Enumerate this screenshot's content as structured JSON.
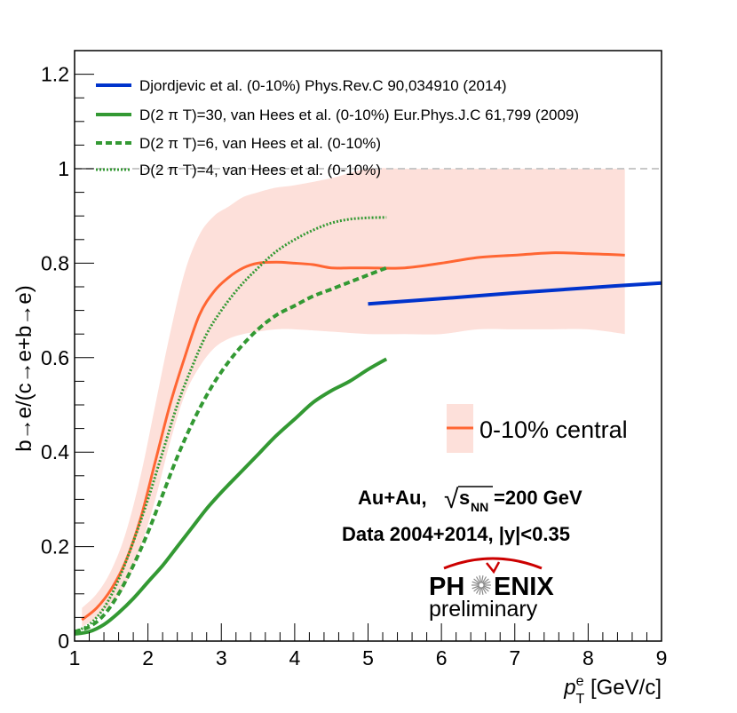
{
  "chart_data": {
    "type": "line",
    "xlabel_main": "p",
    "xlabel_sup": "e",
    "xlabel_sub": "T",
    "xlabel_unit": " [GeV/c]",
    "ylabel": "b→e/(c→e+b→e)",
    "xlim": [
      1,
      9
    ],
    "ylim": [
      0,
      1.25
    ],
    "x_ticks": [
      1,
      2,
      3,
      4,
      5,
      6,
      7,
      8,
      9
    ],
    "x_tick_labels": [
      "1",
      "2",
      "3",
      "4",
      "5",
      "6",
      "7",
      "8",
      "9"
    ],
    "y_ticks": [
      0,
      0.2,
      0.4,
      0.6,
      0.8,
      1,
      1.2
    ],
    "y_tick_labels": [
      "0",
      "0.2",
      "0.4",
      "0.6",
      "0.8",
      "1",
      "1.2"
    ],
    "reference_line": {
      "y": 1,
      "color": "#c8c8c8"
    },
    "band": {
      "name": "0-10% central uncertainty",
      "color": "#fde0da",
      "x": [
        1.1,
        1.3,
        1.5,
        1.7,
        1.9,
        2.1,
        2.3,
        2.5,
        2.7,
        2.9,
        3.1,
        3.3,
        3.5,
        3.75,
        4.0,
        4.5,
        5.0,
        5.5,
        6.0,
        6.5,
        7.0,
        7.5,
        8.0,
        8.5
      ],
      "upper": [
        0.07,
        0.1,
        0.15,
        0.23,
        0.35,
        0.5,
        0.65,
        0.78,
        0.86,
        0.9,
        0.92,
        0.94,
        0.95,
        0.96,
        0.965,
        0.98,
        1.0,
        1.0,
        1.0,
        1.0,
        1.0,
        1.0,
        1.0,
        1.0
      ],
      "lower": [
        0.03,
        0.05,
        0.08,
        0.12,
        0.2,
        0.3,
        0.42,
        0.52,
        0.58,
        0.62,
        0.64,
        0.65,
        0.655,
        0.66,
        0.66,
        0.655,
        0.65,
        0.65,
        0.65,
        0.66,
        0.66,
        0.66,
        0.66,
        0.65
      ]
    },
    "series": [
      {
        "name": "0-10% central",
        "color": "#ff6633",
        "width": 3,
        "dash": "solid",
        "x": [
          1.1,
          1.3,
          1.5,
          1.7,
          1.9,
          2.1,
          2.3,
          2.5,
          2.7,
          2.9,
          3.1,
          3.3,
          3.5,
          3.75,
          4.0,
          4.25,
          4.5,
          4.75,
          5.0,
          5.5,
          6.0,
          6.5,
          7.0,
          7.5,
          8.0,
          8.5
        ],
        "y": [
          0.045,
          0.07,
          0.11,
          0.17,
          0.26,
          0.38,
          0.5,
          0.6,
          0.69,
          0.74,
          0.77,
          0.79,
          0.8,
          0.802,
          0.8,
          0.797,
          0.79,
          0.79,
          0.79,
          0.79,
          0.8,
          0.812,
          0.817,
          0.822,
          0.82,
          0.817
        ]
      },
      {
        "name": "Djordjevic et al. (0-10%) Phys.Rev.C 90,034910 (2014)",
        "color": "#0033cc",
        "width": 4,
        "dash": "solid",
        "x": [
          5.0,
          6.0,
          7.0,
          8.0,
          9.0
        ],
        "y": [
          0.714,
          0.725,
          0.737,
          0.748,
          0.758
        ]
      },
      {
        "name": "D(2 π T)=30, van Hees et al. (0-10%) Eur.Phys.J.C 61,799 (2009)",
        "color": "#339933",
        "width": 4,
        "dash": "solid",
        "x": [
          1.0,
          1.2,
          1.4,
          1.6,
          1.8,
          2.0,
          2.2,
          2.4,
          2.6,
          2.8,
          3.0,
          3.25,
          3.5,
          3.75,
          4.0,
          4.25,
          4.5,
          4.75,
          5.0,
          5.25
        ],
        "y": [
          0.015,
          0.02,
          0.035,
          0.06,
          0.09,
          0.125,
          0.16,
          0.2,
          0.24,
          0.28,
          0.315,
          0.355,
          0.395,
          0.435,
          0.47,
          0.505,
          0.53,
          0.55,
          0.575,
          0.597
        ]
      },
      {
        "name": "D(2 π T)=6, van Hees et al. (0-10%)",
        "color": "#339933",
        "width": 4,
        "dash": "dashed",
        "x": [
          1.0,
          1.2,
          1.4,
          1.6,
          1.8,
          2.0,
          2.2,
          2.4,
          2.6,
          2.8,
          3.0,
          3.25,
          3.5,
          3.75,
          4.0,
          4.25,
          4.5,
          4.75,
          5.0,
          5.25
        ],
        "y": [
          0.02,
          0.03,
          0.055,
          0.1,
          0.16,
          0.23,
          0.31,
          0.39,
          0.46,
          0.52,
          0.57,
          0.62,
          0.66,
          0.69,
          0.71,
          0.73,
          0.745,
          0.76,
          0.775,
          0.79
        ]
      },
      {
        "name": "D(2 π T)=4, van Hees et al. (0-10%)",
        "color": "#339933",
        "width": 3,
        "dash": "dotted",
        "x": [
          1.0,
          1.2,
          1.4,
          1.6,
          1.8,
          2.0,
          2.2,
          2.4,
          2.6,
          2.8,
          3.0,
          3.25,
          3.5,
          3.75,
          4.0,
          4.25,
          4.5,
          4.75,
          5.0,
          5.25
        ],
        "y": [
          0.02,
          0.035,
          0.07,
          0.13,
          0.21,
          0.3,
          0.4,
          0.5,
          0.58,
          0.65,
          0.7,
          0.75,
          0.79,
          0.825,
          0.85,
          0.87,
          0.885,
          0.893,
          0.896,
          0.897
        ]
      }
    ],
    "legend_main": [
      {
        "label": "Djordjevic et al. (0-10%) Phys.Rev.C 90,034910 (2014)",
        "series_index": 1
      },
      {
        "label": "D(2 π T)=30, van Hees et al. (0-10%) Eur.Phys.J.C 61,799 (2009)",
        "series_index": 2
      },
      {
        "label": "D(2 π T)=6, van Hees et al. (0-10%)",
        "series_index": 3
      },
      {
        "label": "D(2 π T)=4, van Hees et al. (0-10%)",
        "series_index": 4
      }
    ],
    "legend_data": {
      "label": "0-10% central",
      "series_index": 0
    },
    "annotations": {
      "system_prefix": "Au+Au, ",
      "sqrt_symbol": "√",
      "s_text": "s",
      "nn_sub": "NN",
      "energy_text": "=200 GeV",
      "data_line": "Data 2004+2014, |y|<0.35",
      "logo_left": "PH",
      "logo_right": "ENIX",
      "logo_sub": "preliminary",
      "logo_arc_color": "#cc0000"
    }
  }
}
